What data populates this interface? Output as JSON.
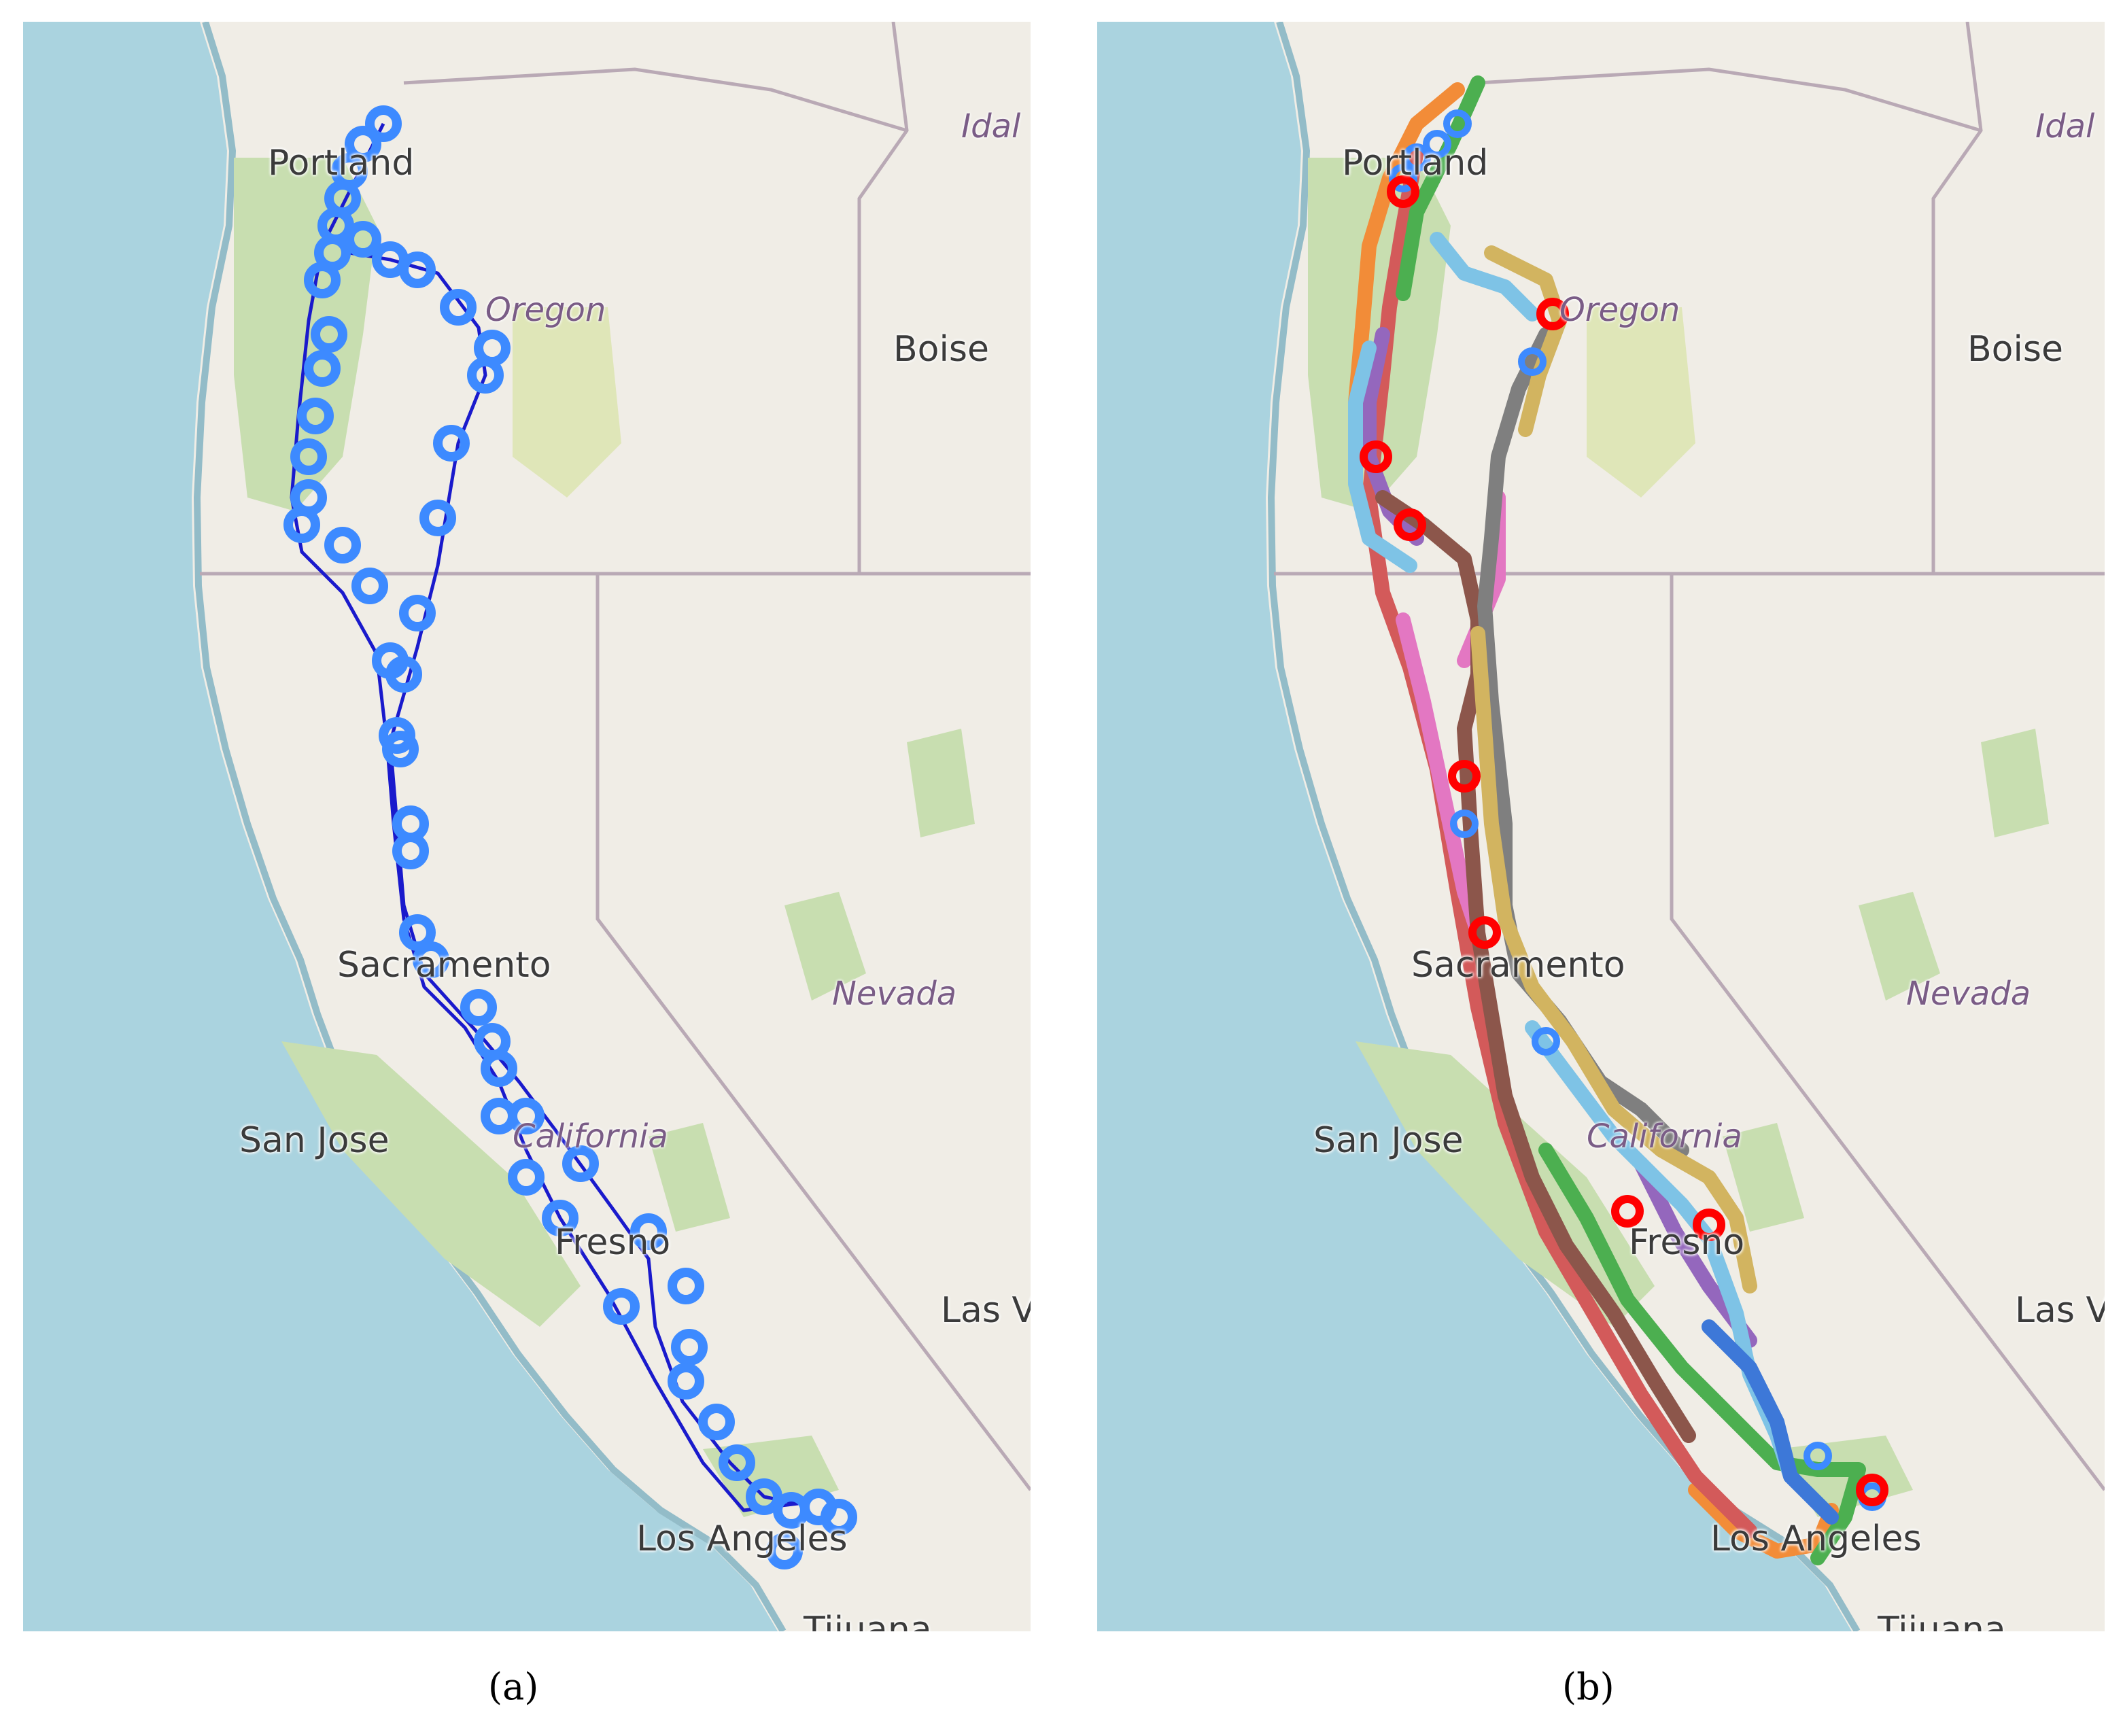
{
  "panels": [
    {
      "id": "a",
      "caption": "(a)",
      "place_labels": {
        "portland": "Portland",
        "idaho": "Idal",
        "oregon": "Oregon",
        "boise": "Boise",
        "sacramento": "Sacramento",
        "nevada": "Nevada",
        "san_jose": "San Jose",
        "california": "California",
        "fresno": "Fresno",
        "las_vegas": "Las V",
        "los_angeles": "Los Angeles",
        "tijuana": "Tijuana"
      }
    },
    {
      "id": "b",
      "caption": "(b)",
      "place_labels": {
        "portland": "Portland",
        "idaho": "Idal",
        "oregon": "Oregon",
        "boise": "Boise",
        "sacramento": "Sacramento",
        "nevada": "Nevada",
        "san_jose": "San Jose",
        "california": "California",
        "fresno": "Fresno",
        "las_vegas": "Las V",
        "los_angeles": "Los Angeles",
        "tijuana": "Tijuana"
      }
    }
  ],
  "colors": {
    "ocean": "#aad3df",
    "land": "#f0ede6",
    "forest": "#c8deb0",
    "park": "#dfe6b8",
    "state_border": "#b9a9b5",
    "track_marker": "#3d8aff",
    "track_line": "#1a1acc",
    "stop_marker": "#ff0000",
    "route_palette": [
      "#f28c38",
      "#d35a5a",
      "#4caf50",
      "#9467bd",
      "#e377c2",
      "#8c564b",
      "#7f7f7f",
      "#d2b460",
      "#7ec3e6",
      "#3d78d8"
    ]
  }
}
